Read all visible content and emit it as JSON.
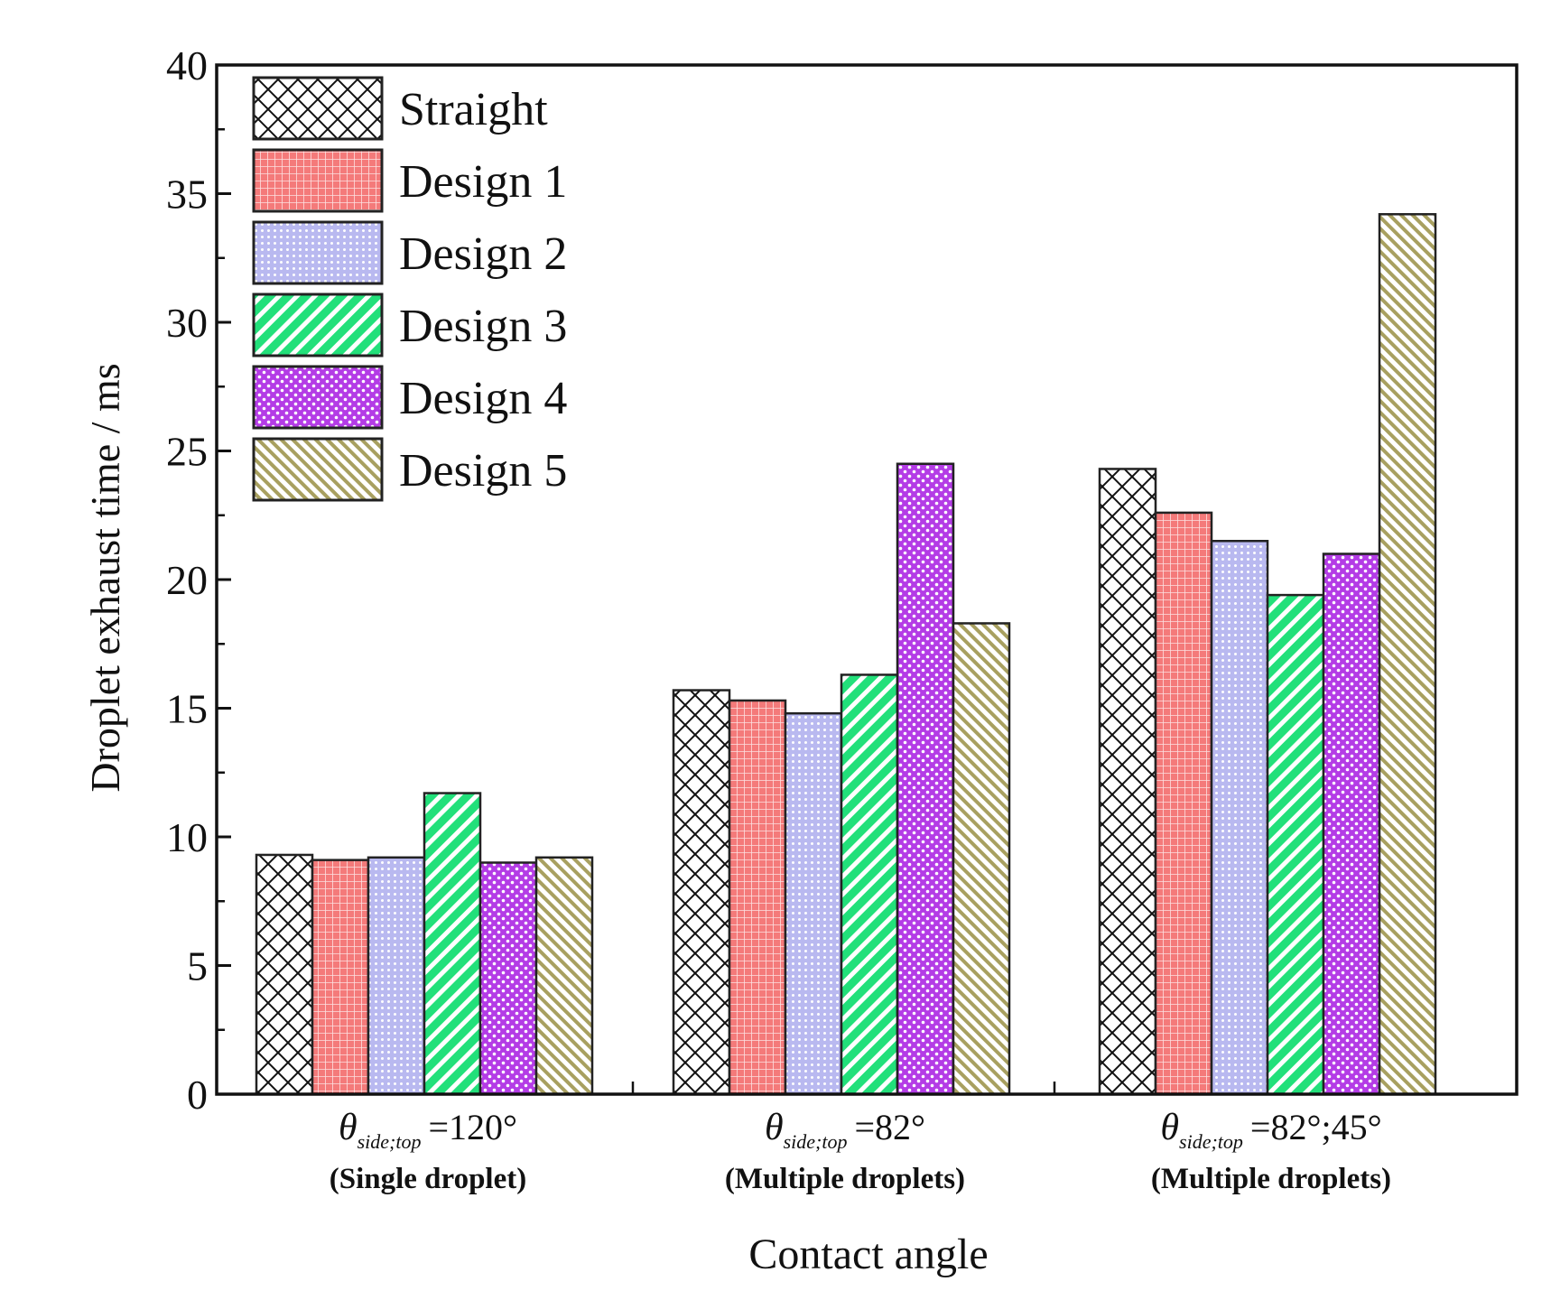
{
  "chart_data": {
    "type": "bar",
    "title": "",
    "xlabel": "Contact angle",
    "ylabel": "Droplet exhaust time / ms",
    "ylim": [
      0,
      40
    ],
    "yticks": [
      "0",
      "5",
      "10",
      "15",
      "20",
      "25",
      "30",
      "35",
      "40"
    ],
    "categories": [
      {
        "symbol": "θ",
        "subscript": "side;top",
        "value": "=120°",
        "note": "(Single droplet)"
      },
      {
        "symbol": "θ",
        "subscript": "side;top",
        "value": "=82°",
        "note": "(Multiple droplets)"
      },
      {
        "symbol": "θ",
        "subscript": "side;top",
        "value": "=82°;45°",
        "note": "(Multiple droplets)"
      }
    ],
    "series": [
      {
        "name": "Straight",
        "values": [
          9.3,
          15.7,
          24.3
        ],
        "color": "#ffffff",
        "pattern": "crosshatch"
      },
      {
        "name": "Design 1",
        "values": [
          9.1,
          15.3,
          22.6
        ],
        "color": "#f47a7a",
        "pattern": "grid"
      },
      {
        "name": "Design 2",
        "values": [
          9.2,
          14.8,
          21.5
        ],
        "color": "#b9b9f0",
        "pattern": "dots"
      },
      {
        "name": "Design 3",
        "values": [
          11.7,
          16.3,
          19.4
        ],
        "color": "#22e07a",
        "pattern": "diagonal-down"
      },
      {
        "name": "Design 4",
        "values": [
          9.0,
          24.5,
          21.0
        ],
        "color": "#b43ce6",
        "pattern": "checker-dots"
      },
      {
        "name": "Design 5",
        "values": [
          9.2,
          18.3,
          34.2
        ],
        "color": "#a8a060",
        "pattern": "diagonal-up"
      }
    ],
    "legend_position": "top-left",
    "grid": false
  }
}
